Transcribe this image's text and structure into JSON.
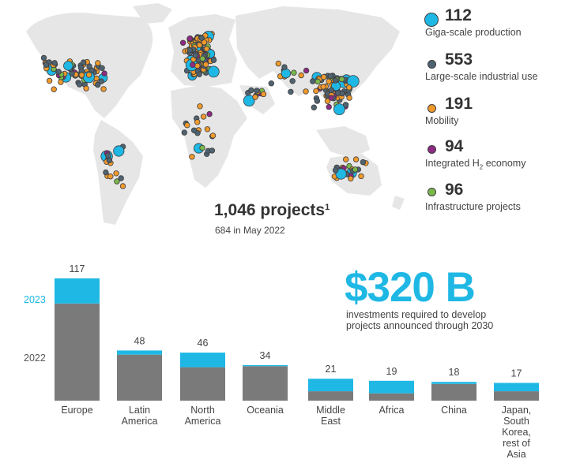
{
  "colors": {
    "giga": "#1fb8e5",
    "large": "#4f6371",
    "mobility": "#f19a2c",
    "integrated": "#8d2a83",
    "infrastructure": "#7ab84b",
    "bar_2022": "#7a7a7a",
    "bar_2023": "#1fb8e5",
    "land": "#e6e6e6",
    "outline": "#3d3d3d"
  },
  "map": {
    "total_label": "1,046 projects",
    "footnote": "1",
    "sub_label": "684 in May 2022"
  },
  "legend": [
    {
      "key": "giga",
      "count": "112",
      "label": "Giga-scale production",
      "icon": "large-cyan-circle"
    },
    {
      "key": "large",
      "count": "553",
      "label": "Large-scale industrial use",
      "icon": "slate-circle"
    },
    {
      "key": "mobility",
      "count": "191",
      "label": "Mobility",
      "icon": "orange-circle"
    },
    {
      "key": "integrated",
      "count": "94",
      "label_prefix": "Integrated H",
      "label_sub": "2",
      "label_suffix": " economy",
      "icon": "purple-circle"
    },
    {
      "key": "infrastructure",
      "count": "96",
      "label": "Infrastructure projects",
      "icon": "green-circle"
    }
  ],
  "highlight": {
    "value": "$320 B",
    "caption_line1": "investments required to develop",
    "caption_line2": "projects announced through 2030"
  },
  "chart_data": {
    "type": "bar",
    "stacked": true,
    "categories": [
      "Europe",
      "Latin America",
      "North America",
      "Oceania",
      "Middle East",
      "Africa",
      "China",
      "Japan, South Korea, rest of Asia"
    ],
    "category_lines": [
      [
        "Europe"
      ],
      [
        "Latin",
        "America"
      ],
      [
        "North",
        "America"
      ],
      [
        "Oceania"
      ],
      [
        "Middle",
        "East"
      ],
      [
        "Africa"
      ],
      [
        "China"
      ],
      [
        "Japan,",
        "South",
        "Korea,",
        "rest of",
        "Asia"
      ]
    ],
    "series": [
      {
        "name": "2022",
        "values": [
          93,
          44,
          32,
          33,
          9,
          7,
          16,
          9
        ]
      },
      {
        "name": "2023",
        "values": [
          24,
          4,
          14,
          1,
          12,
          12,
          2,
          8
        ]
      }
    ],
    "totals": [
      117,
      48,
      46,
      34,
      21,
      19,
      18,
      17
    ],
    "ylim": [
      0,
      117
    ],
    "grid": false,
    "legend_placement": "left"
  }
}
